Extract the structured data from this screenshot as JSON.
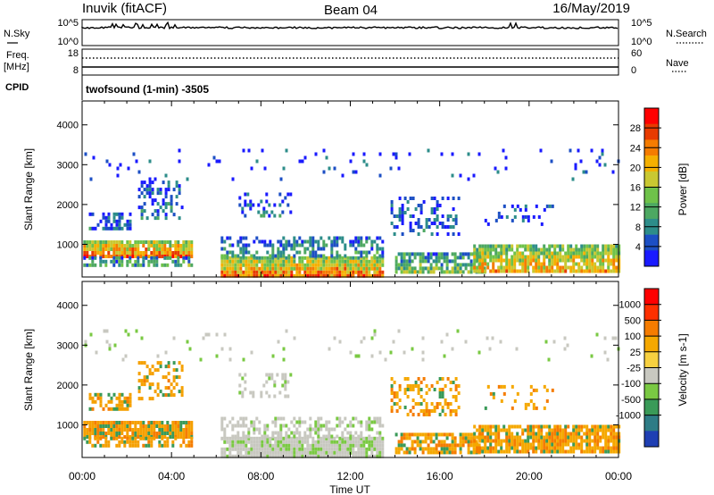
{
  "header": {
    "station": "Inuvik (fitACF)",
    "beam": "Beam 04",
    "date": "16/May/2019"
  },
  "nsky_panel": {
    "left_label": "N.Sky",
    "left_ticks": [
      "10^5",
      "10^0"
    ],
    "right_label": "N.Search",
    "right_ticks": [
      "10^5",
      "10^0"
    ]
  },
  "freq_panel": {
    "left_label_line1": "Freq.",
    "left_label_line2": "[MHz]",
    "left_ticks": [
      "18",
      "8"
    ],
    "right_label": "Nave",
    "right_ticks": [
      "60",
      "0"
    ]
  },
  "cpid": {
    "label": "CPID",
    "text": "twofsound (1-min) -3505"
  },
  "chart_data": [
    {
      "type": "heatmap",
      "name_label": "Power",
      "colorbar_label": "Power [dB]",
      "ylabel": "Slant Range [km]",
      "xlabel": "Time UT",
      "x_ticks": [
        "00:00",
        "04:00",
        "08:00",
        "12:00",
        "16:00",
        "20:00",
        "00:00"
      ],
      "y_ticks": [
        1000,
        2000,
        3000,
        4000
      ],
      "ylim": [
        180,
        4600
      ],
      "xlim_hours": [
        0,
        24
      ],
      "colorbar_ticks": [
        4,
        8,
        12,
        16,
        20,
        24,
        28
      ],
      "colorbar_range": [
        0,
        32
      ],
      "colorbar_colors": [
        "#1a1aff",
        "#1c4fc4",
        "#2d8d8a",
        "#4da862",
        "#6fc24a",
        "#c9c832",
        "#f5b000",
        "#f57c00",
        "#e83b00",
        "#ff0000"
      ]
    },
    {
      "type": "heatmap",
      "name_label": "Velocity",
      "colorbar_label": "Velocity [m s-1]",
      "ylabel": "Slant Range [km]",
      "xlabel": "Time UT",
      "x_ticks": [
        "00:00",
        "04:00",
        "08:00",
        "12:00",
        "16:00",
        "20:00",
        "00:00"
      ],
      "y_ticks": [
        1000,
        2000,
        3000,
        4000
      ],
      "ylim": [
        180,
        4600
      ],
      "xlim_hours": [
        0,
        24
      ],
      "colorbar_ticks": [
        "1000",
        "500",
        "100",
        "25",
        "-25",
        "-100",
        "-500",
        "-1000"
      ],
      "colorbar_colors": [
        "#1f3fb3",
        "#2e7c86",
        "#3a9a58",
        "#7ac943",
        "#c8c8c0",
        "#f7d040",
        "#f5a800",
        "#f57c00",
        "#ff3000",
        "#ff0000"
      ]
    }
  ],
  "x_axis": {
    "ticks": [
      "00:00",
      "04:00",
      "08:00",
      "12:00",
      "16:00",
      "20:00",
      "00:00"
    ],
    "label": "Time UT"
  }
}
